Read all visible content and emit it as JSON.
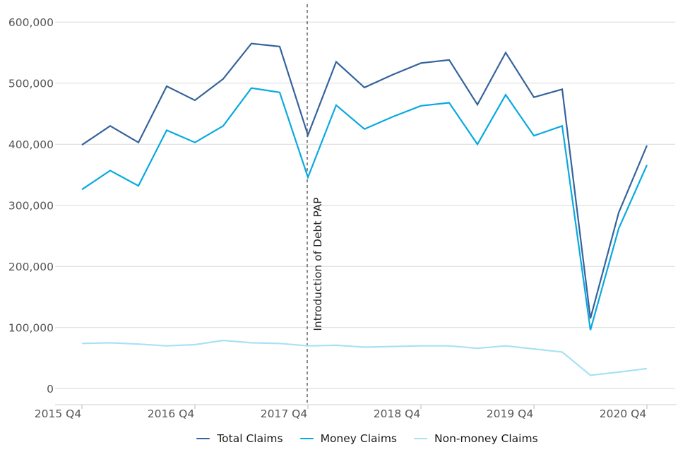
{
  "chart_data": {
    "type": "line",
    "title": "",
    "xlabel": "",
    "ylabel": "",
    "grid": "horizontal",
    "legend_position": "bottom",
    "ylim": [
      0,
      600000
    ],
    "y_ticks": [
      0,
      100000,
      200000,
      300000,
      400000,
      500000,
      600000
    ],
    "y_tick_labels": [
      "0",
      "100,000",
      "200,000",
      "300,000",
      "400,000",
      "500,000",
      "600,000"
    ],
    "x_categories": [
      "2015 Q4",
      "2016 Q1",
      "2016 Q2",
      "2016 Q3",
      "2016 Q4",
      "2017 Q1",
      "2017 Q2",
      "2017 Q3",
      "2017 Q4",
      "2018 Q1",
      "2018 Q2",
      "2018 Q3",
      "2018 Q4",
      "2019 Q1",
      "2019 Q2",
      "2019 Q3",
      "2019 Q4",
      "2020 Q1",
      "2020 Q2",
      "2020 Q3",
      "2020 Q4"
    ],
    "x_tick_labels": [
      "2015 Q4",
      "2016 Q4",
      "2017 Q4",
      "2018 Q4",
      "2019 Q4",
      "2020 Q4"
    ],
    "series": [
      {
        "name": "Total Claims",
        "color": "#36639c",
        "values": [
          399000,
          430000,
          403000,
          495000,
          472000,
          507000,
          565000,
          560000,
          415000,
          535000,
          493000,
          514000,
          533000,
          538000,
          465000,
          550000,
          477000,
          490000,
          115000,
          288000,
          398000
        ]
      },
      {
        "name": "Money Claims",
        "color": "#09a9e0",
        "values": [
          326000,
          357000,
          332000,
          423000,
          403000,
          430000,
          492000,
          485000,
          346000,
          464000,
          425000,
          445000,
          463000,
          468000,
          400000,
          481000,
          414000,
          430000,
          96000,
          262000,
          366000
        ]
      },
      {
        "name": "Non-money Claims",
        "color": "#a8e1f5",
        "values": [
          74000,
          75000,
          73000,
          70000,
          72000,
          79000,
          75000,
          74000,
          70000,
          71000,
          68000,
          69000,
          70000,
          70000,
          66000,
          70000,
          65000,
          60000,
          22000,
          27000,
          33000
        ]
      }
    ],
    "annotation": {
      "label": "Introduction of Debt PAP",
      "x": "2017 Q4",
      "style": "dashed-vertical-line",
      "line_color": "#595959",
      "label_color": "#262626"
    },
    "colors": {
      "gridline": "#d9d9d9",
      "axis_line": "#cfcfcf",
      "tick_mark": "#b9b9b9",
      "tick_label": "#555555",
      "background": "#ffffff"
    }
  }
}
